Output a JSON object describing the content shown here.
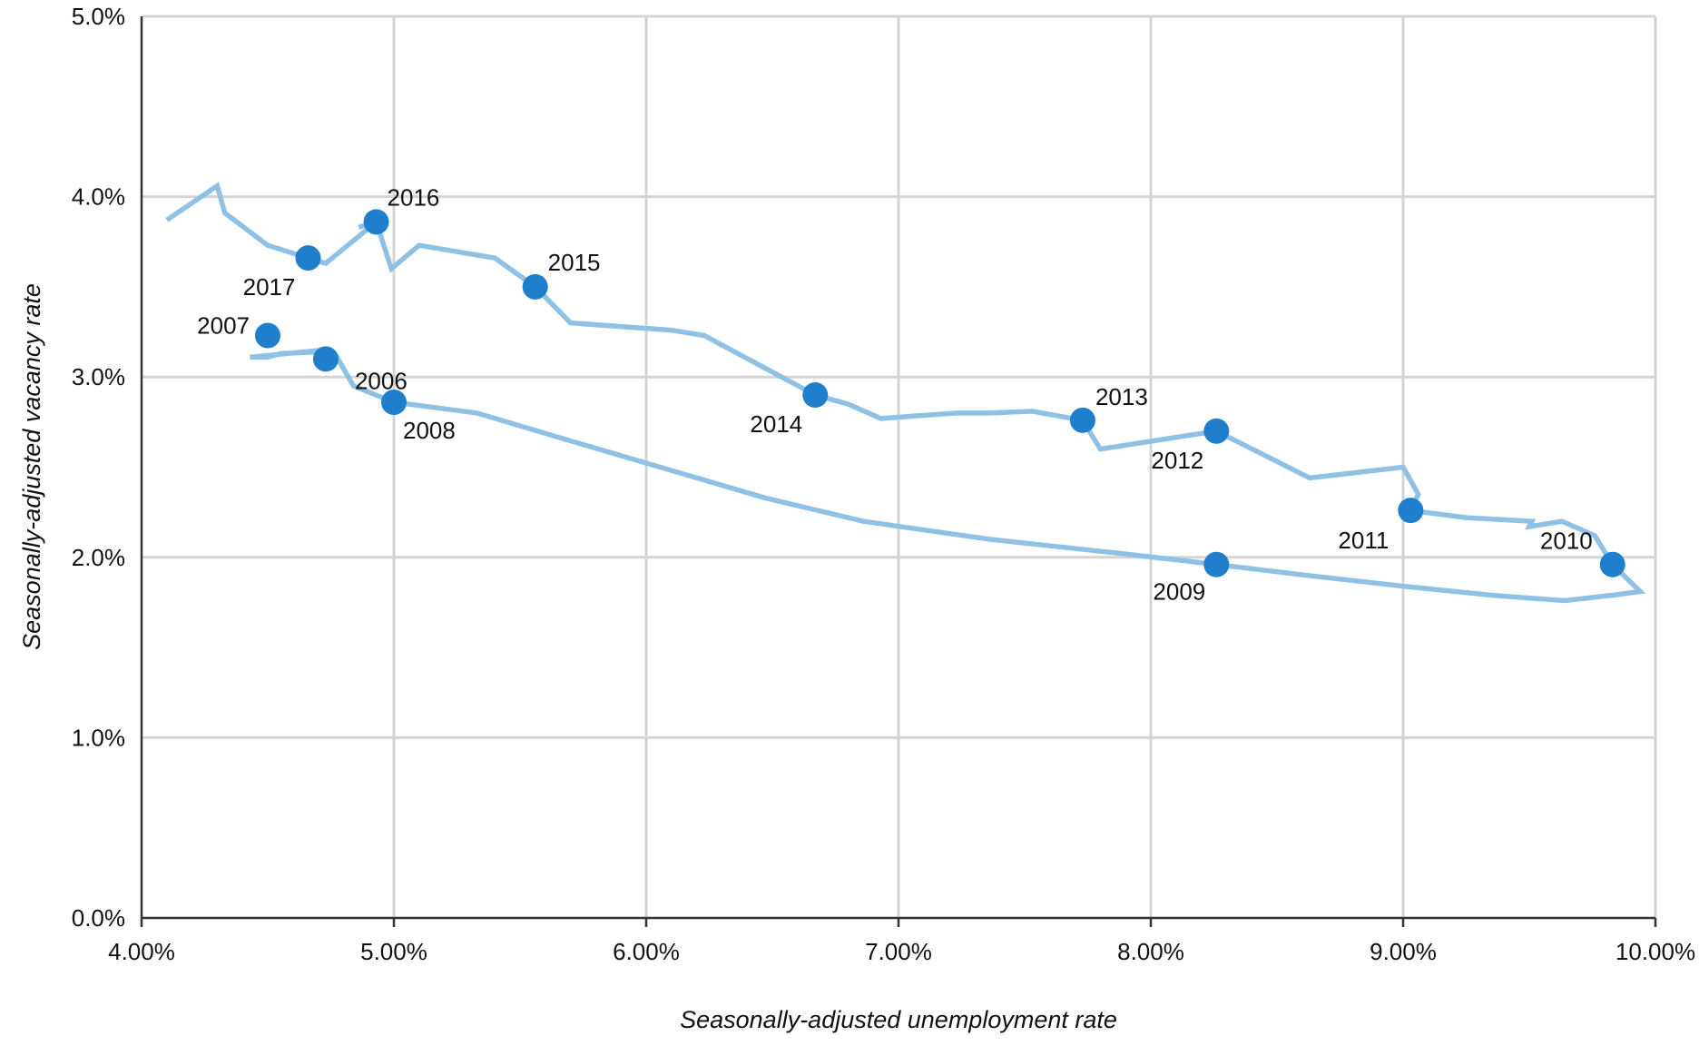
{
  "chart_data": {
    "type": "line",
    "title": "",
    "xlabel": "Seasonally-adjusted unemployment rate",
    "ylabel": "Seasonally-adjusted vacancy rate",
    "xlim": [
      4.0,
      10.0
    ],
    "ylim": [
      0.0,
      5.0
    ],
    "x_ticks": [
      4.0,
      5.0,
      6.0,
      7.0,
      8.0,
      9.0,
      10.0
    ],
    "x_tick_labels": [
      "4.00%",
      "5.00%",
      "6.00%",
      "7.00%",
      "8.00%",
      "9.00%",
      "10.00%"
    ],
    "y_ticks": [
      0.0,
      1.0,
      2.0,
      3.0,
      4.0,
      5.0
    ],
    "y_tick_labels": [
      "0.0%",
      "1.0%",
      "2.0%",
      "3.0%",
      "4.0%",
      "5.0%"
    ],
    "grid": true,
    "legend": "none",
    "colors": {
      "line": "#8fc0e6",
      "marker": "#1f7fcd",
      "grid": "#d4d4d4",
      "axis": "#333333"
    },
    "series": [
      {
        "x": [
          4.72,
          4.55,
          4.5,
          4.43,
          4.72,
          4.77,
          4.84,
          5.0,
          5.33,
          5.69,
          6.08,
          6.47,
          6.86,
          7.36,
          7.89,
          8.26,
          8.62,
          9.0,
          9.35,
          9.64,
          9.83,
          9.94,
          9.83,
          9.76,
          9.63,
          9.5,
          9.51,
          9.25,
          9.03,
          9.06,
          9.0,
          8.63,
          8.26,
          7.8,
          7.73,
          7.53,
          7.36,
          7.23,
          6.93,
          6.8,
          6.67,
          6.23,
          6.1,
          5.7,
          5.56,
          5.4,
          5.1,
          4.99,
          4.93,
          4.86,
          4.93,
          4.73,
          4.66,
          4.5,
          4.33,
          4.3,
          4.1
        ],
        "y": [
          3.14,
          3.13,
          3.11,
          3.11,
          3.15,
          3.12,
          2.95,
          2.86,
          2.8,
          2.65,
          2.49,
          2.33,
          2.2,
          2.1,
          2.02,
          1.96,
          1.9,
          1.84,
          1.79,
          1.76,
          1.79,
          1.81,
          1.96,
          2.12,
          2.2,
          2.17,
          2.2,
          2.22,
          2.26,
          2.35,
          2.5,
          2.44,
          2.7,
          2.6,
          2.76,
          2.81,
          2.8,
          2.8,
          2.77,
          2.85,
          2.9,
          3.23,
          3.26,
          3.3,
          3.5,
          3.66,
          3.73,
          3.6,
          3.86,
          3.83,
          3.86,
          3.63,
          3.66,
          3.73,
          3.91,
          4.06,
          3.87
        ]
      }
    ],
    "highlighted_points": [
      {
        "year": "2006",
        "x": 4.73,
        "y": 3.1
      },
      {
        "year": "2007",
        "x": 4.5,
        "y": 3.23
      },
      {
        "year": "2008",
        "x": 5.0,
        "y": 2.86
      },
      {
        "year": "2009",
        "x": 8.26,
        "y": 1.96
      },
      {
        "year": "2010",
        "x": 9.83,
        "y": 1.96
      },
      {
        "year": "2011",
        "x": 9.03,
        "y": 2.26
      },
      {
        "year": "2012",
        "x": 8.26,
        "y": 2.7
      },
      {
        "year": "2013",
        "x": 7.73,
        "y": 2.76
      },
      {
        "year": "2014",
        "x": 6.67,
        "y": 2.9
      },
      {
        "year": "2015",
        "x": 5.56,
        "y": 3.5
      },
      {
        "year": "2016",
        "x": 4.93,
        "y": 3.86
      },
      {
        "year": "2017",
        "x": 4.66,
        "y": 3.66
      }
    ]
  }
}
